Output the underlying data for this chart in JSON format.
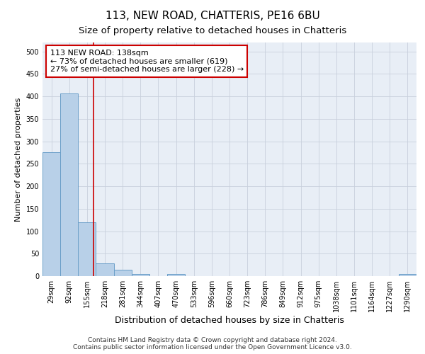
{
  "title": "113, NEW ROAD, CHATTERIS, PE16 6BU",
  "subtitle": "Size of property relative to detached houses in Chatteris",
  "xlabel": "Distribution of detached houses by size in Chatteris",
  "ylabel": "Number of detached properties",
  "bar_labels": [
    "29sqm",
    "92sqm",
    "155sqm",
    "218sqm",
    "281sqm",
    "344sqm",
    "407sqm",
    "470sqm",
    "533sqm",
    "596sqm",
    "660sqm",
    "723sqm",
    "786sqm",
    "849sqm",
    "912sqm",
    "975sqm",
    "1038sqm",
    "1101sqm",
    "1164sqm",
    "1227sqm",
    "1290sqm"
  ],
  "bar_values": [
    275,
    407,
    120,
    28,
    14,
    5,
    0,
    5,
    0,
    0,
    0,
    0,
    0,
    0,
    0,
    0,
    0,
    0,
    0,
    0,
    5
  ],
  "bar_color": "#b8d0e8",
  "bar_edge_color": "#6a9fc8",
  "vline_x": 2.35,
  "vline_color": "#cc0000",
  "annotation_text": "113 NEW ROAD: 138sqm\n← 73% of detached houses are smaller (619)\n27% of semi-detached houses are larger (228) →",
  "annotation_box_color": "#ffffff",
  "annotation_box_edge": "#cc0000",
  "ylim": [
    0,
    520
  ],
  "yticks": [
    0,
    50,
    100,
    150,
    200,
    250,
    300,
    350,
    400,
    450,
    500
  ],
  "grid_color": "#c8d0dc",
  "bg_color": "#e8eef6",
  "footer": "Contains HM Land Registry data © Crown copyright and database right 2024.\nContains public sector information licensed under the Open Government Licence v3.0.",
  "title_fontsize": 11,
  "subtitle_fontsize": 9.5,
  "xlabel_fontsize": 9,
  "ylabel_fontsize": 8,
  "tick_fontsize": 7,
  "annotation_fontsize": 8,
  "footer_fontsize": 6.5
}
